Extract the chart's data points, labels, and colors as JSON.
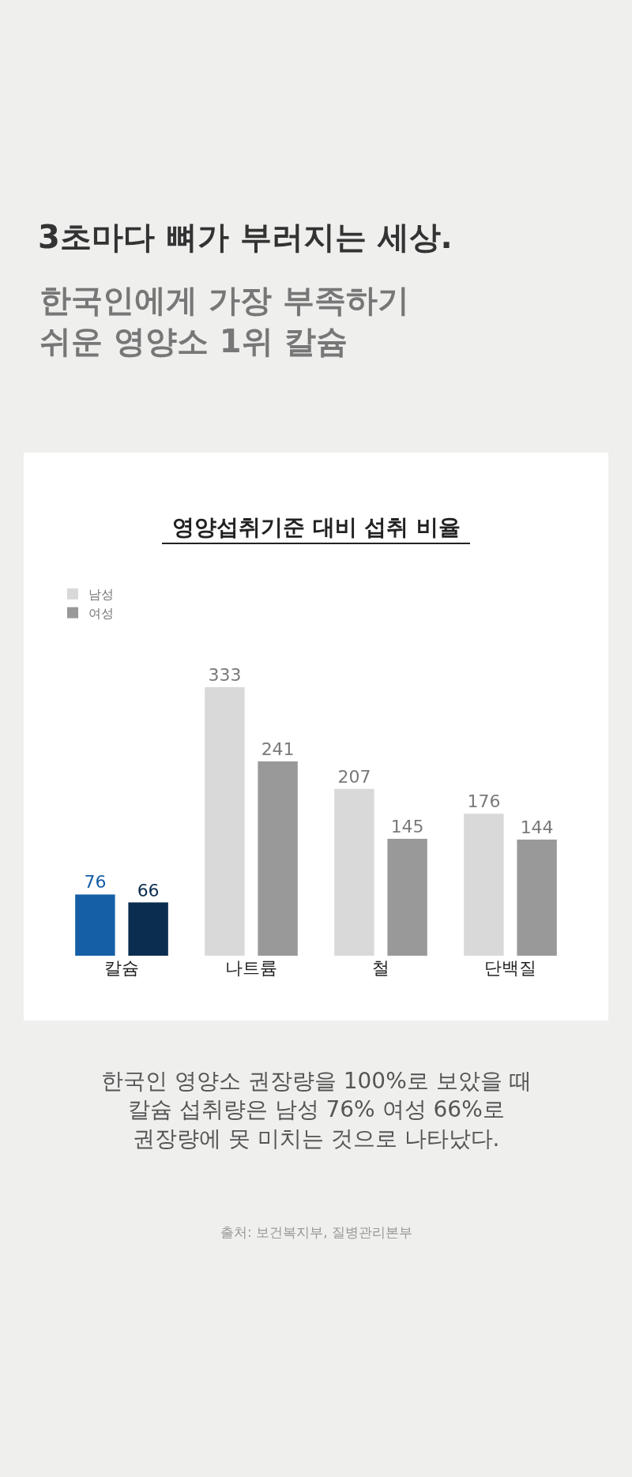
{
  "chart_data": {
    "type": "bar",
    "title": "3초마다 뼈가 부러지는 세상.",
    "subtitle": "한국인에게 가장 부족하기\n쉬운 영양소 1위 칼슘",
    "categories": [
      "칼슘",
      "나트륨",
      "철",
      "단백질"
    ],
    "series": [
      {
        "name": "남성",
        "color": "#d9d9d9",
        "colors": [
          "#155fa6",
          "#d9d9d9",
          "#d9d9d9",
          "#d9d9d9"
        ],
        "values": [
          76,
          333,
          207,
          176
        ]
      },
      {
        "name": "여성",
        "color": "#999999",
        "colors": [
          "#0b2d4f",
          "#999999",
          "#999999",
          "#999999"
        ],
        "values": [
          66,
          241,
          145,
          144
        ]
      }
    ],
    "data_labels": true,
    "legend": "top left",
    "annotations": [
      "영양섭취기준 대비 섭취 비율",
      "한국인 영양소 권장량을 100%로 보았을 때\n칼슘 섭취량은 남성 76% 여성 66%로\n권장량에 못 미치는 것으로 나타났다.",
      "출처: 보건복지부, 질병관리본부"
    ]
  }
}
